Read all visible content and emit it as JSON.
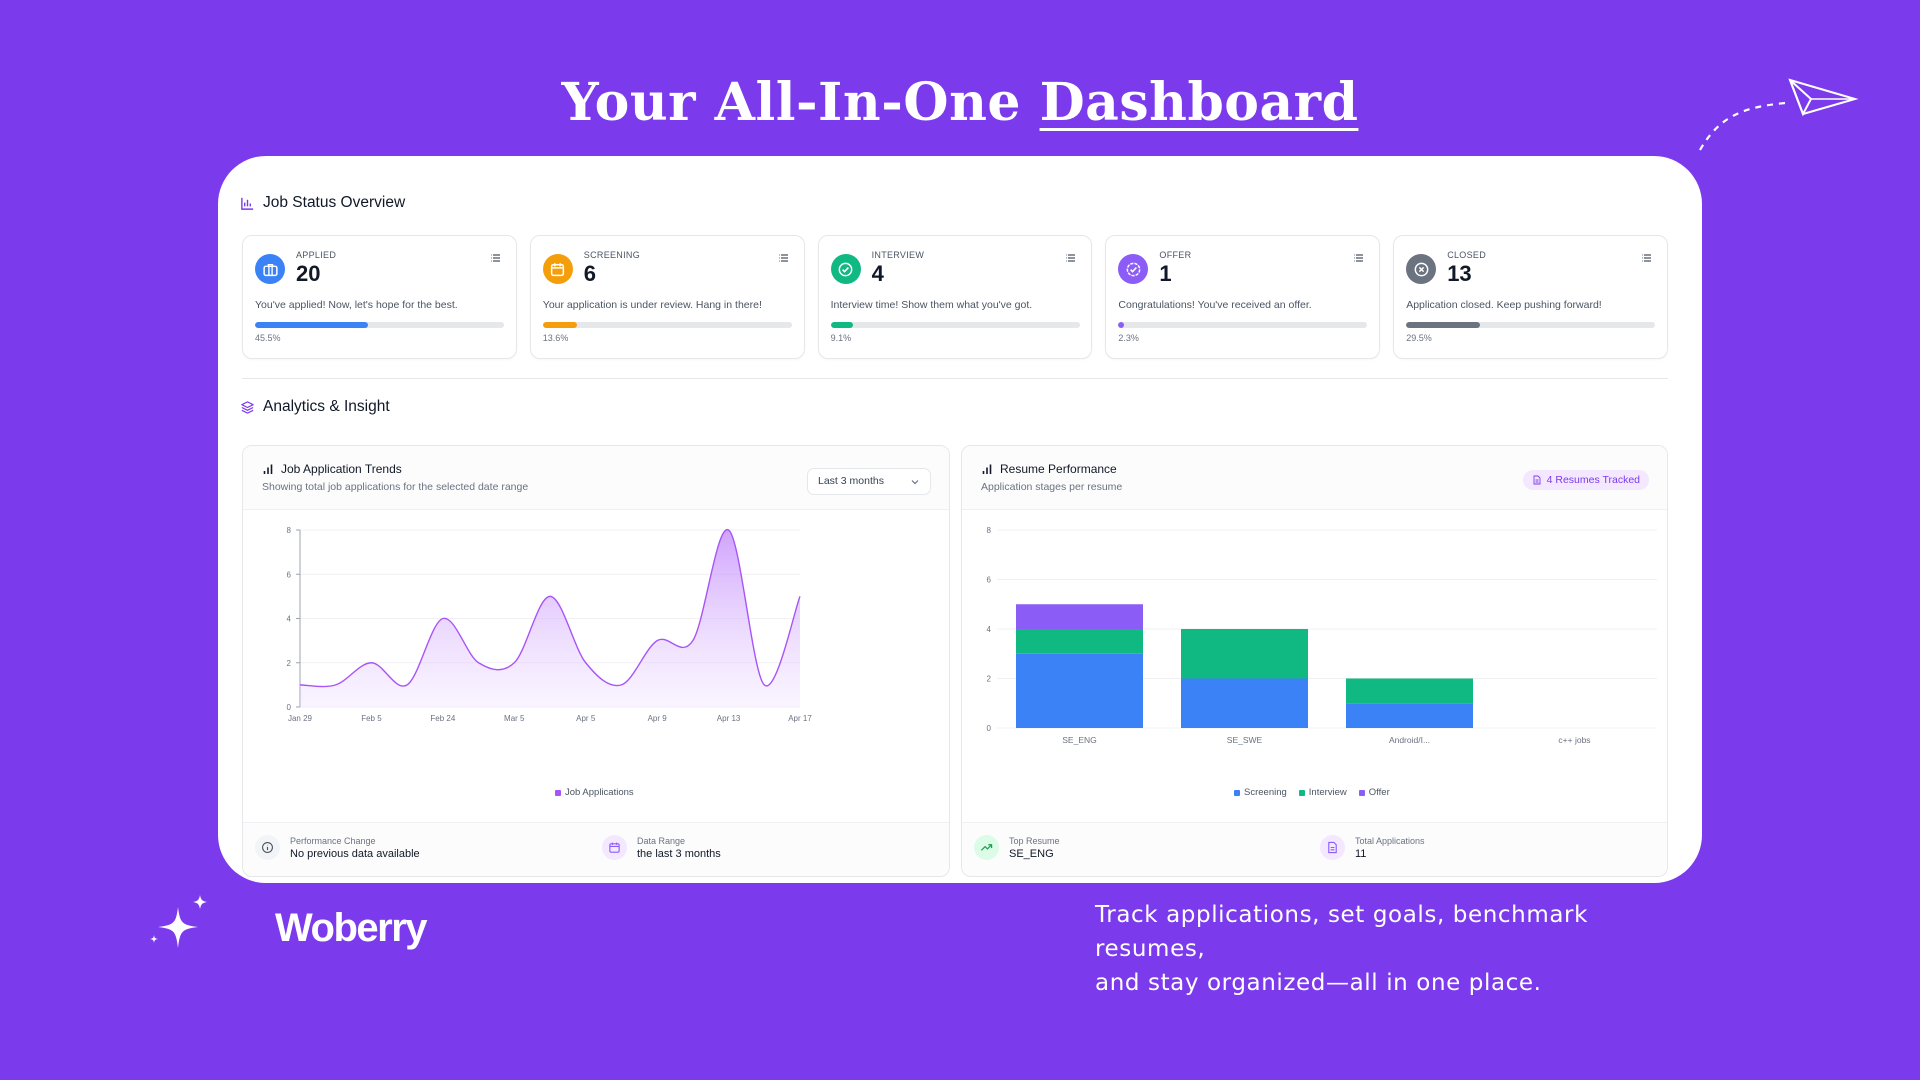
{
  "hero": {
    "title_prefix": "Your All-In-One",
    "title_emphasis": "Dashboard"
  },
  "status_section": {
    "title": "Job Status Overview"
  },
  "status_cards": [
    {
      "label": "APPLIED",
      "count": "20",
      "description": "You've applied! Now, let's hope for the best.",
      "percent_text": "45.5%",
      "progress": 0.455,
      "color": "#3b82f6",
      "icon": "briefcase-icon"
    },
    {
      "label": "SCREENING",
      "count": "6",
      "description": "Your application is under review. Hang in there!",
      "percent_text": "13.6%",
      "progress": 0.136,
      "color": "#f59e0b",
      "icon": "calendar-icon"
    },
    {
      "label": "INTERVIEW",
      "count": "4",
      "description": "Interview time! Show them what you've got.",
      "percent_text": "9.1%",
      "progress": 0.091,
      "color": "#10b981",
      "icon": "check-circle-icon"
    },
    {
      "label": "OFFER",
      "count": "1",
      "description": "Congratulations! You've received an offer.",
      "percent_text": "2.3%",
      "progress": 0.023,
      "color": "#8b5cf6",
      "icon": "badge-check-icon"
    },
    {
      "label": "CLOSED",
      "count": "13",
      "description": "Application closed. Keep pushing forward!",
      "percent_text": "29.5%",
      "progress": 0.295,
      "color": "#6b7280",
      "icon": "x-circle-icon"
    }
  ],
  "analytics_section": {
    "title": "Analytics & Insight"
  },
  "trends": {
    "title": "Job Application Trends",
    "subtitle": "Showing total job applications for the selected date range",
    "range_select": "Last 3 months",
    "footer": {
      "left_label": "Performance Change",
      "left_value": "No previous data available",
      "right_label": "Data Range",
      "right_value": "the last 3 months"
    }
  },
  "resume": {
    "title": "Resume Performance",
    "subtitle": "Application stages per resume",
    "badge": "4 Resumes Tracked",
    "footer": {
      "left_label": "Top Resume",
      "left_value": "SE_ENG",
      "right_label": "Total Applications",
      "right_value": "11"
    }
  },
  "chart_data": [
    {
      "type": "area",
      "x_ticks": [
        "Jan 29",
        "Feb 5",
        "Feb 24",
        "Mar 5",
        "Apr 5",
        "Apr 9",
        "Apr 13",
        "Apr 17"
      ],
      "ylim": [
        0,
        8
      ],
      "y_ticks": [
        0,
        2,
        4,
        6,
        8
      ],
      "series": [
        {
          "name": "Job Applications",
          "color": "#a855f7",
          "points": [
            1,
            1,
            2,
            1,
            4,
            2,
            2,
            5,
            2,
            1,
            3,
            3,
            8,
            1,
            5
          ]
        }
      ],
      "grid": true,
      "legend": "bottom"
    },
    {
      "type": "bar",
      "stacked": true,
      "categories": [
        "SE_ENG",
        "SE_SWE",
        "Android/I...",
        "c++ jobs"
      ],
      "ylim": [
        0,
        8
      ],
      "y_ticks": [
        0,
        2,
        4,
        6,
        8
      ],
      "series": [
        {
          "name": "Screening",
          "color": "#3b82f6",
          "values": [
            3,
            2,
            1,
            0
          ]
        },
        {
          "name": "Interview",
          "color": "#10b981",
          "values": [
            1,
            2,
            1,
            0
          ]
        },
        {
          "name": "Offer",
          "color": "#8b5cf6",
          "values": [
            1,
            0,
            0,
            0
          ]
        }
      ],
      "grid": true,
      "legend": "bottom"
    }
  ],
  "footer": {
    "brand": "Woberry",
    "tagline_line1": "Track applications, set goals, benchmark resumes,",
    "tagline_line2": "and stay organized—all in one place."
  }
}
